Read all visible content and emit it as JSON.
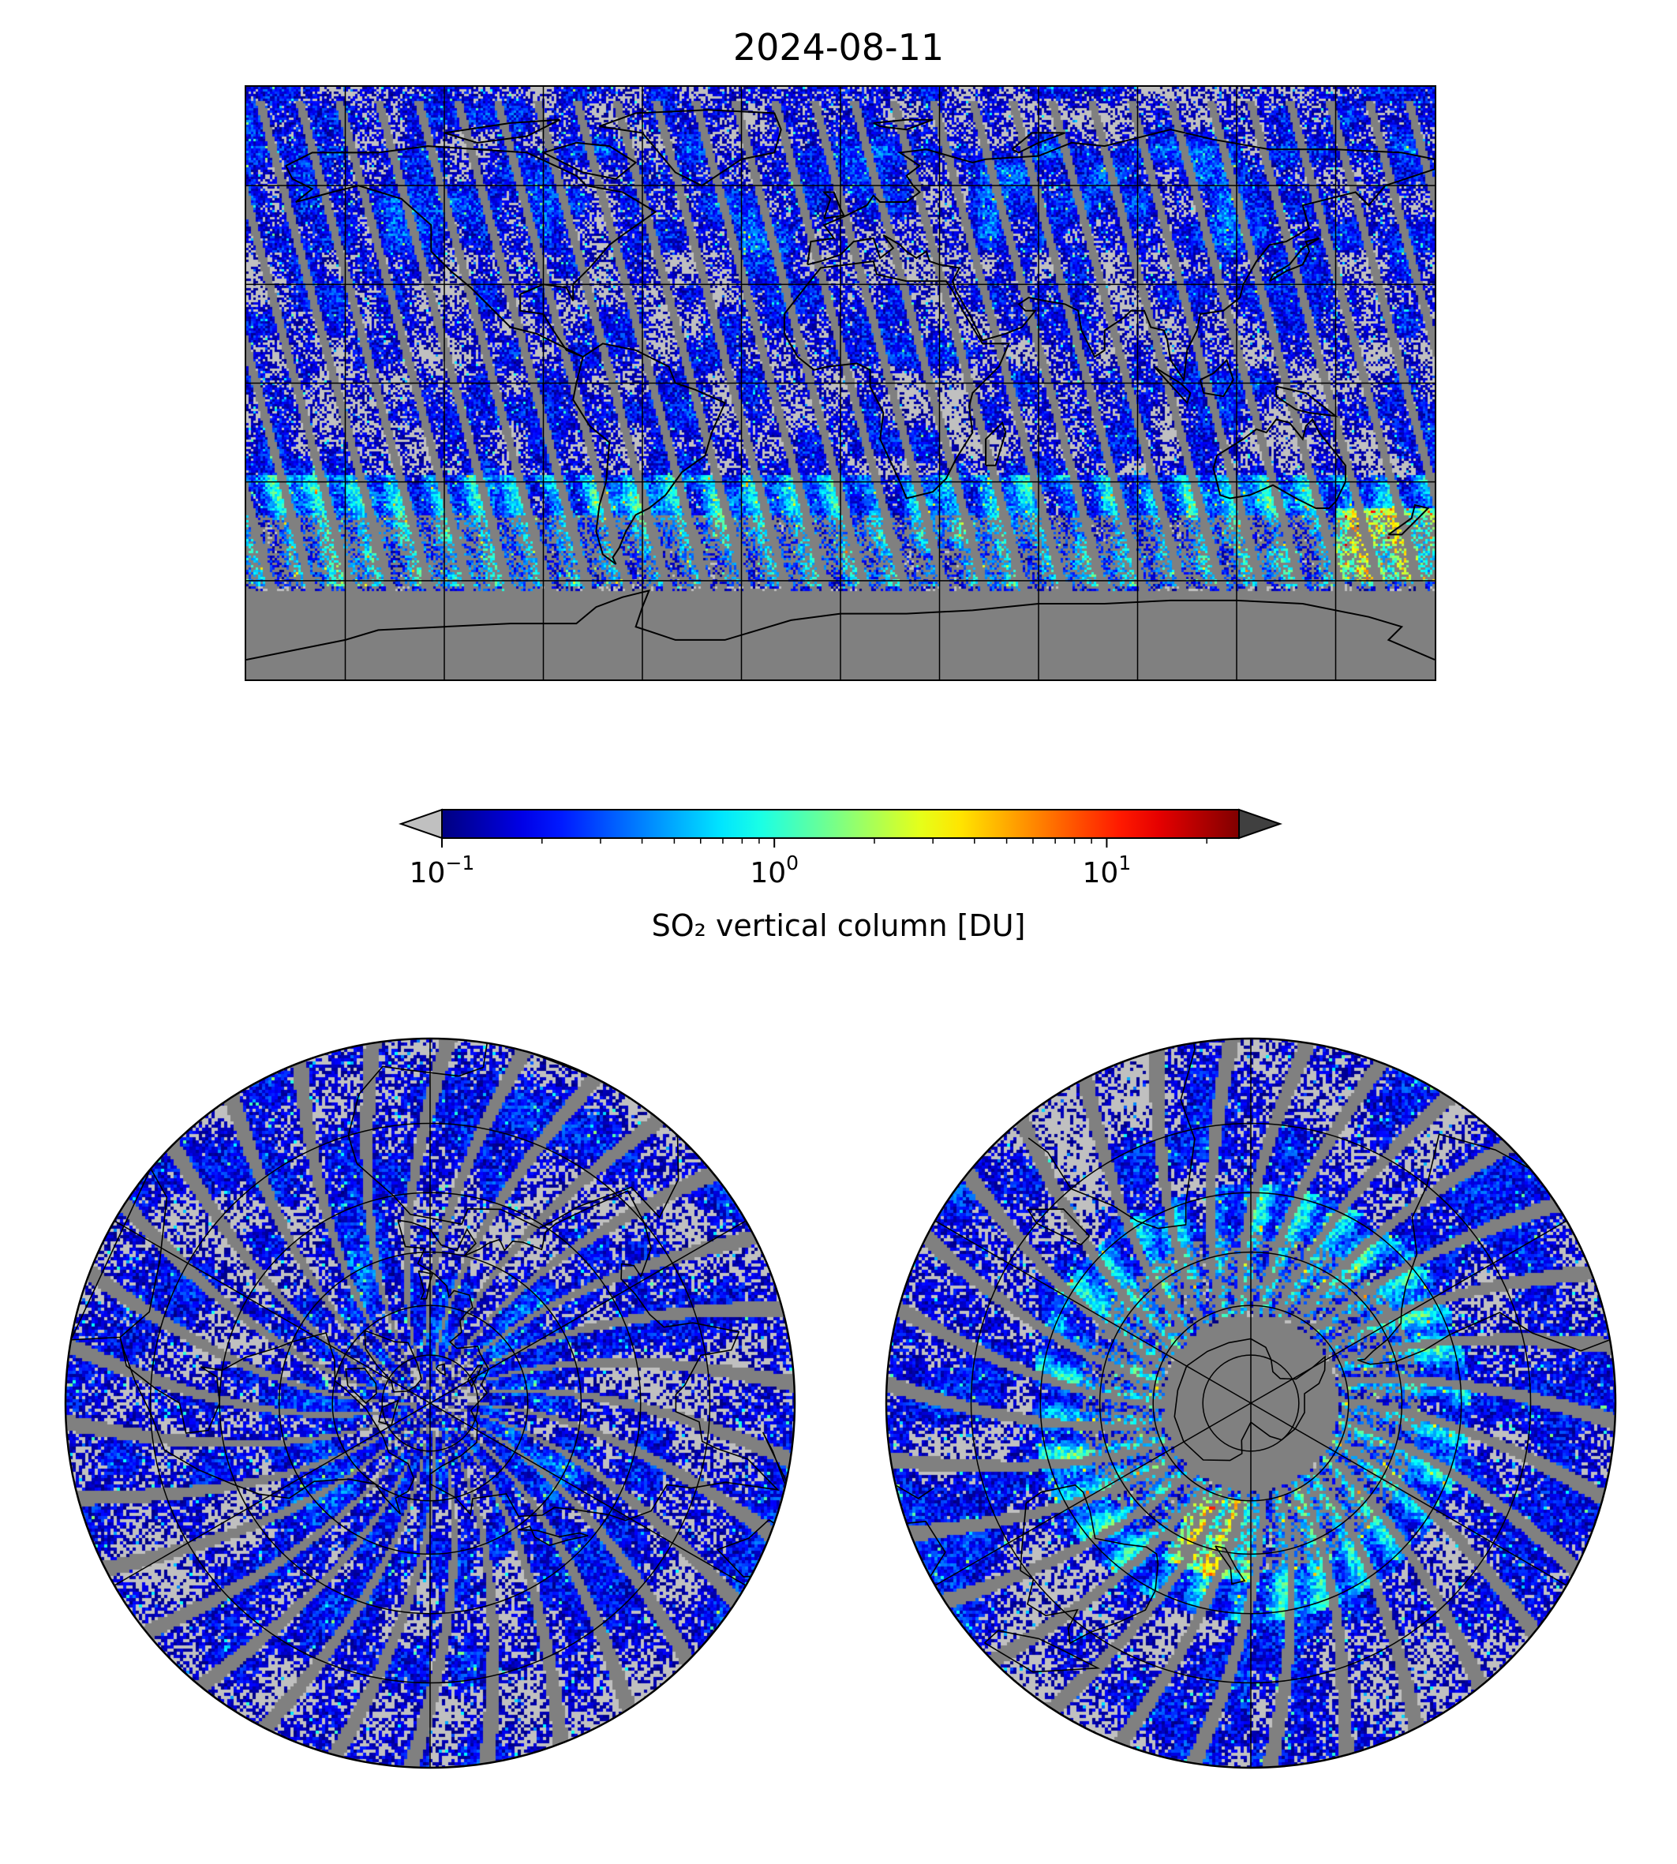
{
  "title": "2024-08-11",
  "colorbar": {
    "label": "SO₂ vertical column [DU]",
    "scale": "log",
    "range": [
      0.1,
      25
    ],
    "extend": "both",
    "colormap": "jet",
    "under_color": "#c0c0c0",
    "over_color": "#404040",
    "ticks": [
      {
        "base": "10",
        "exp": "−1"
      },
      {
        "base": "10",
        "exp": "0"
      },
      {
        "base": "10",
        "exp": "1"
      }
    ]
  },
  "maps": {
    "global": {
      "projection": "plate-carree",
      "gridlines": true,
      "coastlines": true
    },
    "north": {
      "projection": "north-polar-stereographic",
      "gridlines": true,
      "coastlines": true
    },
    "south": {
      "projection": "south-polar-stereographic",
      "gridlines": true,
      "coastlines": true
    }
  },
  "colors": {
    "no_data": "#808080",
    "below_range": "#c0c0c0",
    "coastline": "#000000",
    "gridline": "#000000"
  }
}
